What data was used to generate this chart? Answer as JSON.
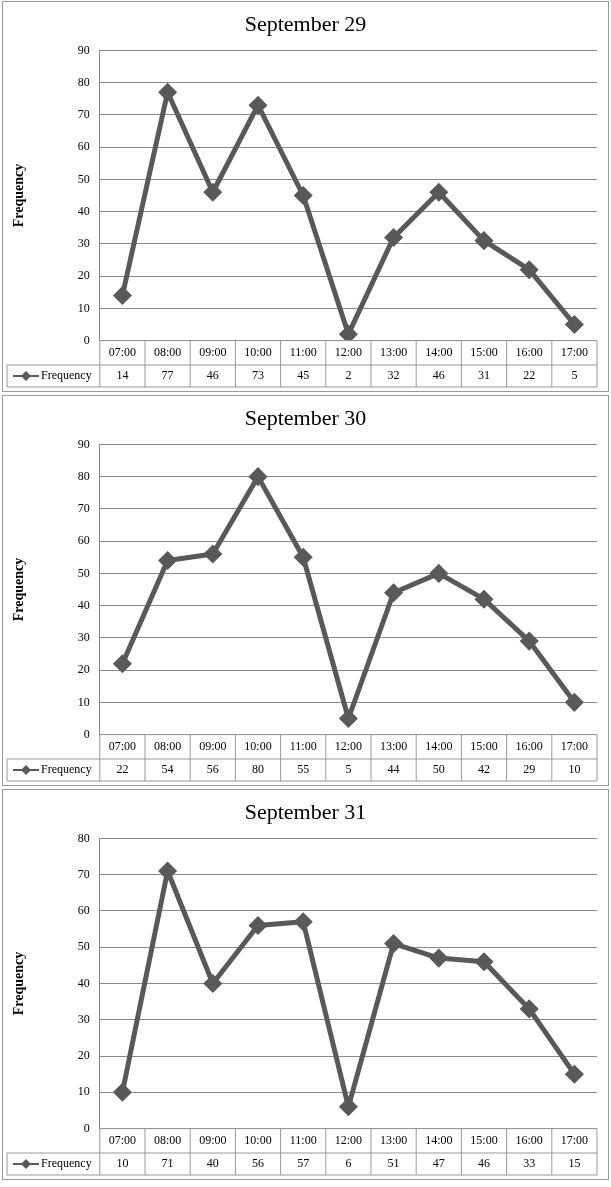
{
  "chart_data": [
    {
      "type": "line",
      "title": "September 29",
      "ylabel": "Frequency",
      "categories": [
        "07:00",
        "08:00",
        "09:00",
        "10:00",
        "11:00",
        "12:00",
        "13:00",
        "14:00",
        "15:00",
        "16:00",
        "17:00"
      ],
      "series": [
        {
          "name": "Frequency",
          "color": "#595959",
          "values": [
            14,
            77,
            46,
            73,
            45,
            2,
            32,
            46,
            31,
            22,
            5
          ]
        }
      ],
      "ylim": [
        0,
        90
      ],
      "yticks": [
        0,
        10,
        20,
        30,
        40,
        50,
        60,
        70,
        80,
        90
      ],
      "grid": "y",
      "legend": "bottom",
      "marker": "diamond",
      "line_style": "solid",
      "data_labels": true
    },
    {
      "type": "line",
      "title": "September 30",
      "ylabel": "Frequency",
      "categories": [
        "07:00",
        "08:00",
        "09:00",
        "10:00",
        "11:00",
        "12:00",
        "13:00",
        "14:00",
        "15:00",
        "16:00",
        "17:00"
      ],
      "series": [
        {
          "name": "Frequency",
          "color": "#595959",
          "values": [
            22,
            54,
            56,
            80,
            55,
            5,
            44,
            50,
            42,
            29,
            10
          ]
        }
      ],
      "ylim": [
        0,
        90
      ],
      "yticks": [
        0,
        10,
        20,
        30,
        40,
        50,
        60,
        70,
        80,
        90
      ],
      "grid": "y",
      "legend": "bottom",
      "marker": "diamond",
      "line_style": "solid",
      "data_labels": true
    },
    {
      "type": "line",
      "title": "September 31",
      "ylabel": "Frequency",
      "categories": [
        "07:00",
        "08:00",
        "09:00",
        "10:00",
        "11:00",
        "12:00",
        "13:00",
        "14:00",
        "15:00",
        "16:00",
        "17:00"
      ],
      "series": [
        {
          "name": "Frequency",
          "color": "#595959",
          "values": [
            10,
            71,
            40,
            56,
            57,
            6,
            51,
            47,
            46,
            33,
            15
          ]
        }
      ],
      "ylim": [
        0,
        80
      ],
      "yticks": [
        0,
        10,
        20,
        30,
        40,
        50,
        60,
        70,
        80
      ],
      "grid": "y",
      "legend": "bottom",
      "marker": "diamond",
      "line_style": "solid",
      "data_labels": true
    }
  ]
}
